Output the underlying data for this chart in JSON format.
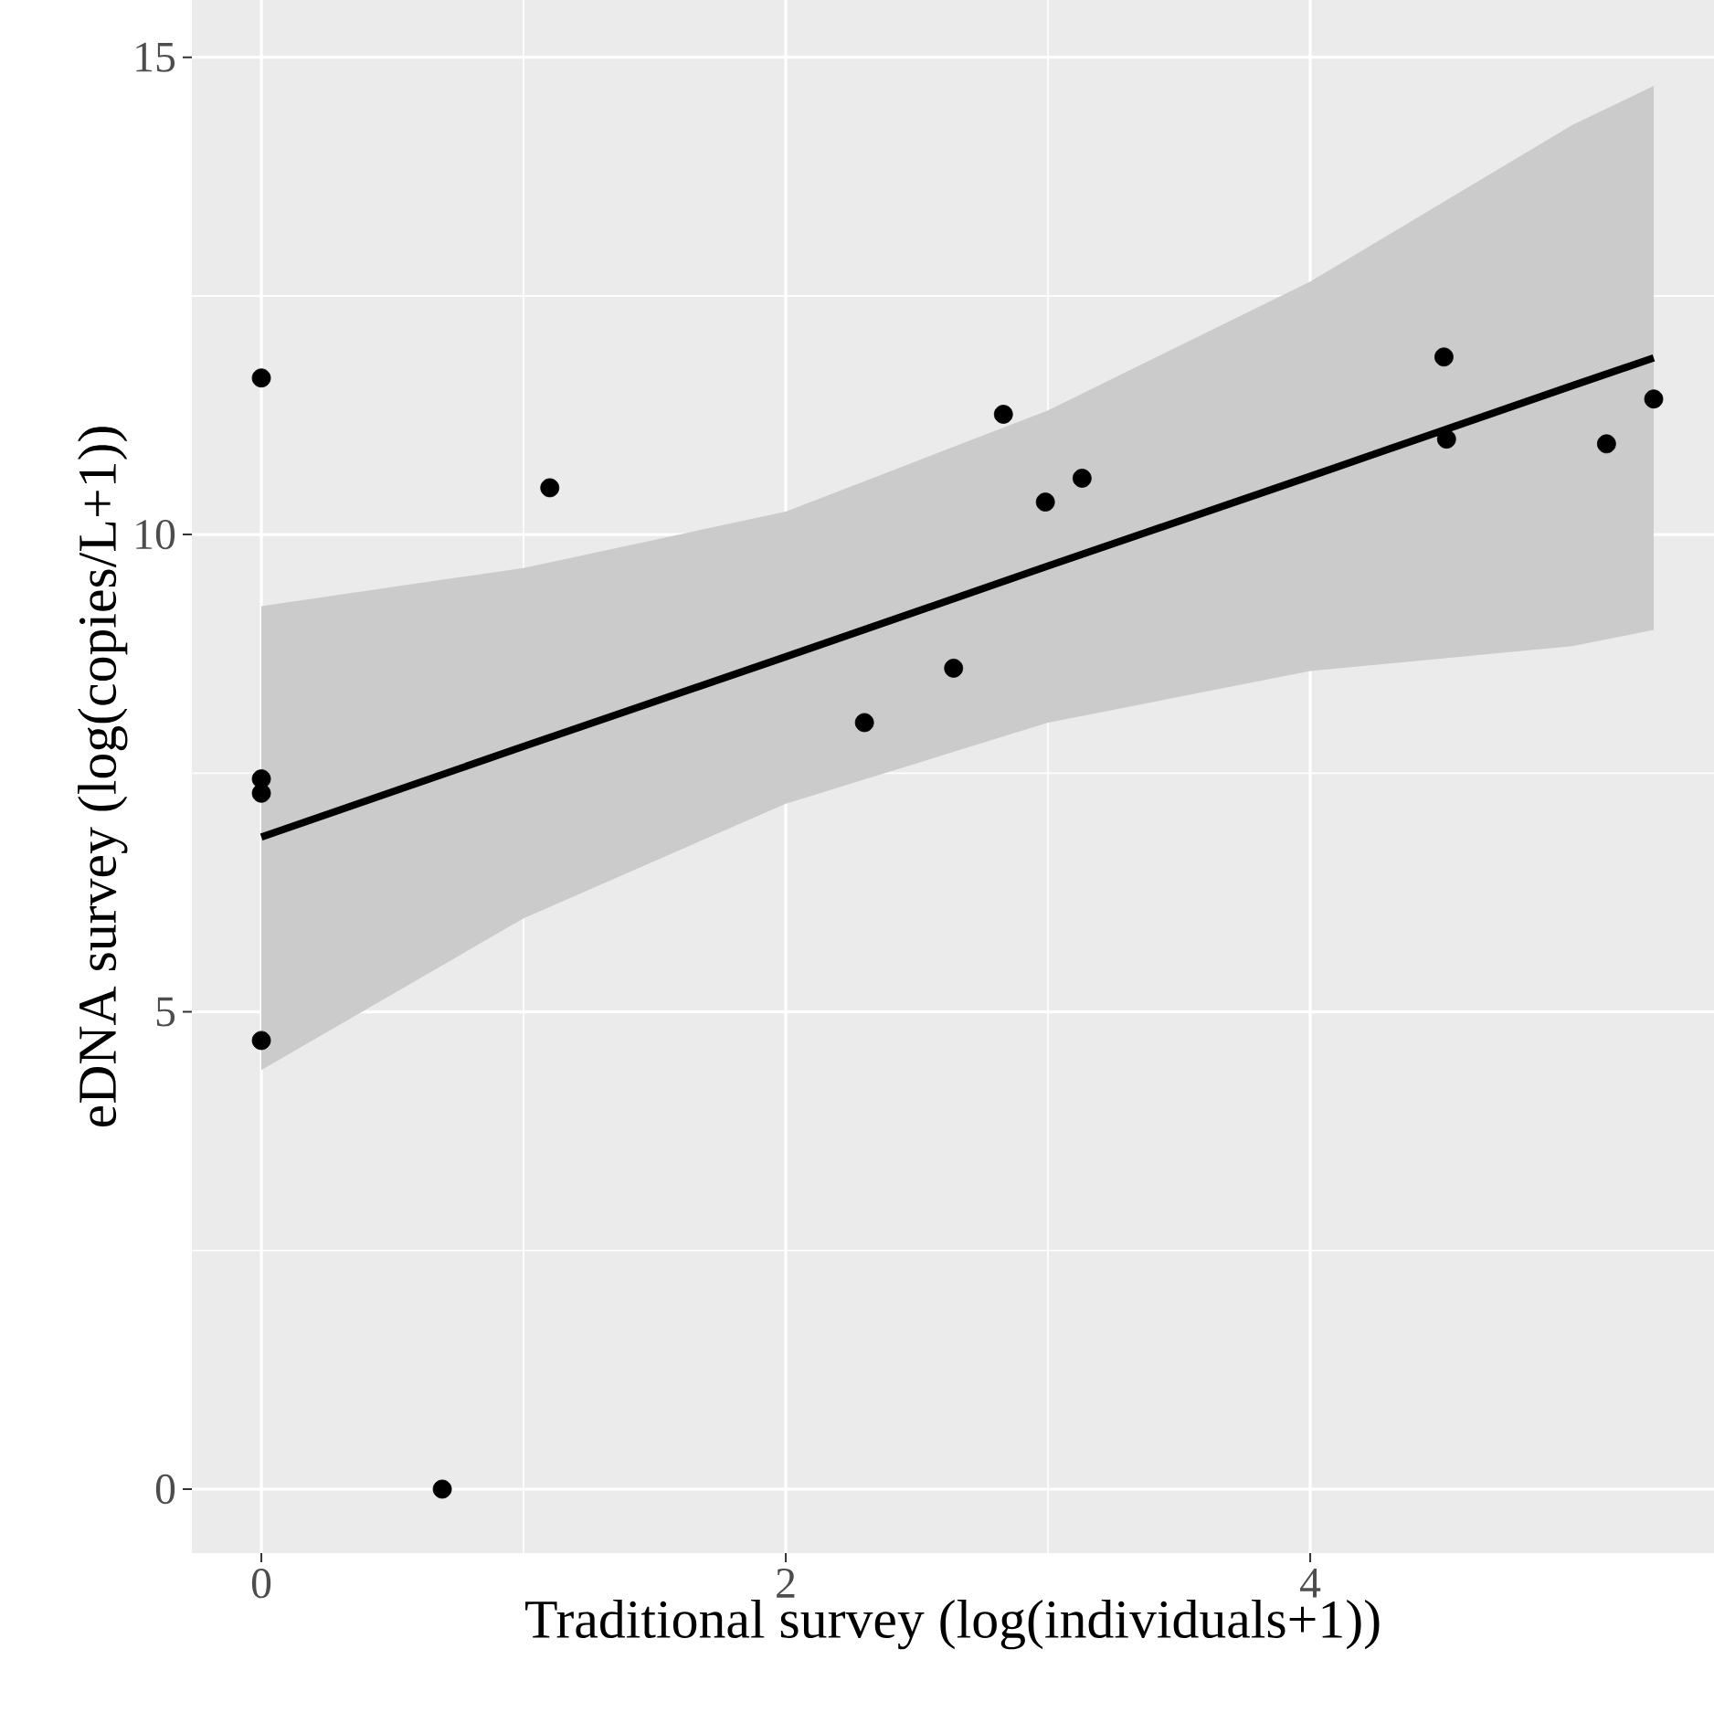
{
  "chart_data": {
    "type": "scatter",
    "xlabel": "Traditional survey (log(individuals+1))",
    "ylabel": "eDNA survey (log(copies/L+1))",
    "xlim": [
      -0.265,
      5.54
    ],
    "ylim": [
      -0.67,
      15.6
    ],
    "xticks": [
      0,
      2,
      4
    ],
    "yticks": [
      0,
      5,
      10,
      15
    ],
    "grid": true,
    "series": [
      {
        "type": "scatter",
        "marker": "circle",
        "color": "#000000",
        "x": [
          0,
          0,
          0,
          0,
          0.69,
          1.1,
          2.3,
          2.64,
          2.83,
          2.99,
          3.13,
          4.51,
          4.52,
          5.13,
          5.31
        ],
        "values": [
          11.64,
          7.44,
          7.29,
          4.7,
          0,
          10.49,
          8.03,
          8.6,
          11.26,
          10.34,
          10.59,
          11.86,
          11.0,
          10.95,
          11.42
        ]
      },
      {
        "type": "line",
        "marker": "none",
        "line_style": "solid",
        "color": "#000000",
        "x": [
          0,
          1,
          2,
          3,
          4,
          5,
          5.31
        ],
        "values": [
          6.83,
          7.78,
          8.72,
          9.67,
          10.61,
          11.56,
          11.85
        ],
        "lower": [
          4.39,
          5.98,
          7.18,
          8.03,
          8.57,
          8.83,
          9.0
        ],
        "upper": [
          9.25,
          9.65,
          10.24,
          11.3,
          12.65,
          14.29,
          14.7
        ]
      }
    ]
  }
}
